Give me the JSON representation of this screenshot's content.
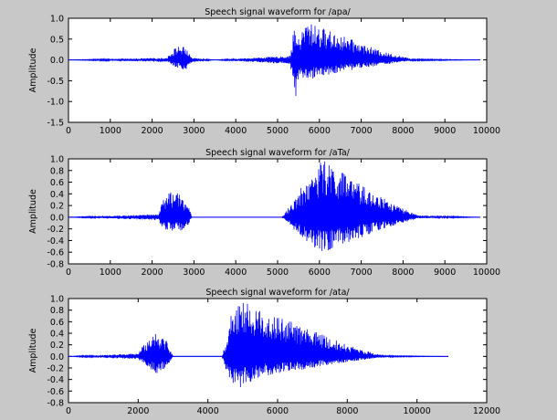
{
  "chart_data": [
    {
      "type": "line",
      "title": "Speech signal waveform for /apa/",
      "xlabel": "",
      "ylabel": "Amplitude",
      "xlim": [
        0,
        10000
      ],
      "ylim": [
        -1.5,
        1.0
      ],
      "xticks": [
        0,
        1000,
        2000,
        3000,
        4000,
        5000,
        6000,
        7000,
        8000,
        9000,
        10000
      ],
      "yticks": [
        -1.5,
        -1.0,
        -0.5,
        0.0,
        0.5,
        1.0
      ],
      "xtick_labels": [
        "0",
        "1000",
        "2000",
        "3000",
        "4000",
        "5000",
        "6000",
        "7000",
        "8000",
        "9000",
        "10000"
      ],
      "ytick_labels": [
        "-1.5",
        "-1.0",
        "-0.5",
        "0.0",
        "0.5",
        "1.0"
      ],
      "grid": false,
      "series": [
        {
          "color": "#0000ff",
          "x": [
            0,
            2350,
            2500,
            2650,
            2800,
            2950,
            3200,
            3500,
            5300,
            5400,
            5450,
            5500,
            5700,
            5850,
            6000,
            6500,
            7000,
            7500,
            8000,
            8200,
            9850
          ],
          "ymax": [
            0,
            0.05,
            0.25,
            0.35,
            0.3,
            0.05,
            0.03,
            0,
            0.1,
            0.8,
            0.6,
            0.5,
            0.95,
            0.85,
            0.8,
            0.6,
            0.4,
            0.2,
            0.08,
            0.02,
            0
          ],
          "ymin": [
            0,
            -0.05,
            -0.15,
            -0.2,
            -0.25,
            -0.05,
            -0.03,
            0,
            -0.1,
            -0.7,
            -1.05,
            -0.45,
            -0.5,
            -0.45,
            -0.4,
            -0.3,
            -0.2,
            -0.12,
            -0.05,
            -0.02,
            0
          ]
        }
      ]
    },
    {
      "type": "line",
      "title": "Speech signal waveform for /aTa/",
      "xlabel": "",
      "ylabel": "Amplitude",
      "xlim": [
        0,
        10000
      ],
      "ylim": [
        -0.8,
        1.0
      ],
      "xticks": [
        0,
        1000,
        2000,
        3000,
        4000,
        5000,
        6000,
        7000,
        8000,
        9000,
        10000
      ],
      "yticks": [
        -0.8,
        -0.6,
        -0.4,
        -0.2,
        0.0,
        0.2,
        0.4,
        0.6,
        0.8,
        1.0
      ],
      "xtick_labels": [
        "0",
        "1000",
        "2000",
        "3000",
        "4000",
        "5000",
        "6000",
        "7000",
        "8000",
        "9000",
        "10000"
      ],
      "ytick_labels": [
        "-0.8",
        "-0.6",
        "-0.4",
        "-0.2",
        "0.0",
        "0.2",
        "0.4",
        "0.6",
        "0.8",
        "1.0"
      ],
      "grid": false,
      "series": [
        {
          "color": "#0000ff",
          "x": [
            0,
            2150,
            2250,
            2450,
            2650,
            2850,
            2950,
            5100,
            5300,
            5600,
            5900,
            6100,
            6500,
            7000,
            7500,
            8000,
            8350,
            9850
          ],
          "ymax": [
            0,
            0.05,
            0.3,
            0.45,
            0.4,
            0.25,
            0,
            0,
            0.2,
            0.55,
            0.85,
            1.0,
            0.8,
            0.55,
            0.35,
            0.15,
            0.03,
            0
          ],
          "ymin": [
            0,
            -0.05,
            -0.2,
            -0.25,
            -0.25,
            -0.15,
            0,
            0,
            -0.15,
            -0.35,
            -0.55,
            -0.6,
            -0.5,
            -0.35,
            -0.2,
            -0.1,
            -0.02,
            0
          ]
        }
      ]
    },
    {
      "type": "line",
      "title": "Speech signal waveform for /ata/",
      "xlabel": "",
      "ylabel": "Amplitude",
      "xlim": [
        0,
        12000
      ],
      "ylim": [
        -0.8,
        1.0
      ],
      "xticks": [
        0,
        2000,
        4000,
        6000,
        8000,
        10000,
        12000
      ],
      "yticks": [
        -0.8,
        -0.6,
        -0.4,
        -0.2,
        0.0,
        0.2,
        0.4,
        0.6,
        0.8,
        1.0
      ],
      "xtick_labels": [
        "0",
        "2000",
        "4000",
        "6000",
        "8000",
        "10000",
        "12000"
      ],
      "ytick_labels": [
        "-0.8",
        "-0.6",
        "-0.4",
        "-0.2",
        "0.0",
        "0.2",
        "0.4",
        "0.6",
        "0.8",
        "1.0"
      ],
      "grid": false,
      "series": [
        {
          "color": "#0000ff",
          "x": [
            0,
            2000,
            2200,
            2500,
            2800,
            3000,
            4400,
            4500,
            4700,
            4900,
            5100,
            5500,
            6000,
            7000,
            8000,
            8800,
            9300,
            10900
          ],
          "ymax": [
            0,
            0.05,
            0.25,
            0.45,
            0.3,
            0,
            0,
            0.2,
            0.85,
            1.0,
            0.95,
            0.8,
            0.7,
            0.45,
            0.2,
            0.05,
            0.01,
            0
          ],
          "ymin": [
            0,
            -0.05,
            -0.15,
            -0.3,
            -0.2,
            0,
            0,
            -0.2,
            -0.5,
            -0.55,
            -0.5,
            -0.35,
            -0.3,
            -0.2,
            -0.1,
            -0.03,
            -0.01,
            0
          ]
        }
      ]
    }
  ]
}
